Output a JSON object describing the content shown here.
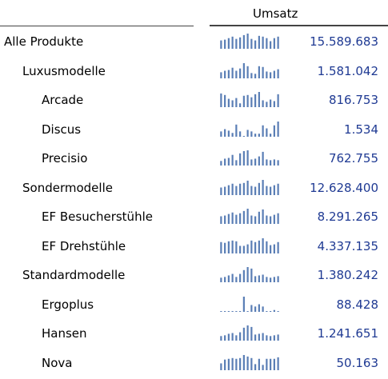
{
  "header": {
    "column_label": "Umsatz"
  },
  "colors": {
    "spark": "#5a7eb5",
    "value_text": "#1f3a93"
  },
  "rows": [
    {
      "name": "Alle Produkte",
      "level": 0,
      "value": "15.589.683",
      "spark": [
        0.55,
        0.6,
        0.7,
        0.8,
        0.65,
        0.75,
        0.9,
        1,
        0.65,
        0.55,
        0.85,
        0.8,
        0.7,
        0.5,
        0.7,
        0.8
      ]
    },
    {
      "name": "Luxusmodelle",
      "level": 1,
      "value": "1.581.042",
      "spark": [
        0.4,
        0.5,
        0.55,
        0.7,
        0.5,
        0.65,
        1,
        0.8,
        0.35,
        0.3,
        0.8,
        0.75,
        0.45,
        0.4,
        0.5,
        0.6
      ]
    },
    {
      "name": "Arcade",
      "level": 2,
      "value": "816.753",
      "spark": [
        0.9,
        0.8,
        0.55,
        0.45,
        0.6,
        0.25,
        0.75,
        0.8,
        0.65,
        0.85,
        1,
        0.45,
        0.35,
        0.5,
        0.4,
        0.85
      ]
    },
    {
      "name": "Discus",
      "level": 2,
      "value": "1.534",
      "spark": [
        0.35,
        0.5,
        0.4,
        0.25,
        0.8,
        0.35,
        0.0,
        0.45,
        0.35,
        0.2,
        0.2,
        0.75,
        0.55,
        0.2,
        0.75,
        1
      ]
    },
    {
      "name": "Precisio",
      "level": 2,
      "value": "762.755",
      "spark": [
        0.3,
        0.45,
        0.5,
        0.7,
        0.35,
        0.8,
        0.95,
        1,
        0.4,
        0.45,
        0.6,
        0.9,
        0.4,
        0.35,
        0.4,
        0.35
      ]
    },
    {
      "name": "Sondermodelle",
      "level": 1,
      "value": "12.628.400",
      "spark": [
        0.5,
        0.55,
        0.65,
        0.75,
        0.6,
        0.75,
        0.8,
        0.95,
        0.6,
        0.55,
        0.8,
        1,
        0.6,
        0.55,
        0.65,
        0.75
      ]
    },
    {
      "name": "EF Besucherstühle",
      "level": 2,
      "value": "8.291.265",
      "spark": [
        0.5,
        0.55,
        0.65,
        0.75,
        0.6,
        0.7,
        0.85,
        1,
        0.55,
        0.5,
        0.8,
        0.95,
        0.55,
        0.5,
        0.6,
        0.7
      ]
    },
    {
      "name": "EF Drehstühle",
      "level": 2,
      "value": "4.337.135",
      "spark": [
        0.75,
        0.7,
        0.8,
        0.85,
        0.8,
        0.5,
        0.5,
        0.6,
        0.85,
        0.75,
        0.85,
        1,
        0.8,
        0.55,
        0.6,
        0.75
      ]
    },
    {
      "name": "Standardmodelle",
      "level": 1,
      "value": "1.380.242",
      "spark": [
        0.3,
        0.35,
        0.45,
        0.55,
        0.35,
        0.55,
        0.8,
        1,
        0.9,
        0.4,
        0.45,
        0.5,
        0.35,
        0.3,
        0.35,
        0.4
      ]
    },
    {
      "name": "Ergoplus",
      "level": 2,
      "value": "88.428",
      "spark": [
        0.05,
        0.05,
        0.05,
        0.05,
        0.05,
        0.05,
        1,
        0.05,
        0.45,
        0.35,
        0.5,
        0.35,
        0.05,
        0.05,
        0.12,
        0.05
      ]
    },
    {
      "name": "Hansen",
      "level": 2,
      "value": "1.241.651",
      "spark": [
        0.3,
        0.35,
        0.45,
        0.5,
        0.35,
        0.55,
        0.85,
        1,
        0.9,
        0.4,
        0.45,
        0.5,
        0.35,
        0.3,
        0.35,
        0.4
      ]
    },
    {
      "name": "Nova",
      "level": 2,
      "value": "50.163",
      "spark": [
        0.45,
        0.7,
        0.75,
        0.8,
        0.75,
        0.8,
        1,
        0.9,
        0.8,
        0.4,
        0.75,
        0.35,
        0.75,
        0.75,
        0.75,
        0.85
      ]
    }
  ]
}
